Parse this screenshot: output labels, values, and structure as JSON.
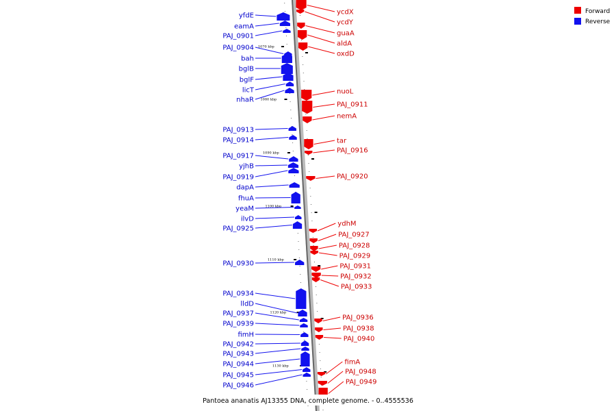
{
  "caption": "Pantoea ananatis AJ13355 DNA, complete genome. - 0..4555536",
  "legend": [
    {
      "label": "Forward",
      "color": "#ee0000"
    },
    {
      "label": "Reverse",
      "color": "#1111ee"
    }
  ],
  "kbp_marks": [
    "1070 kbp",
    "1080 kbp",
    "1090 kbp",
    "1100 kbp",
    "1110 kbp",
    "1120 kbp",
    "1130 kbp"
  ],
  "reverse_genes": [
    "yfdE",
    "eamA",
    "PAJ_0901",
    "PAJ_0904",
    "bah",
    "bglB",
    "bglF",
    "licT",
    "nhaR",
    "PAJ_0913",
    "PAJ_0914",
    "PAJ_0917",
    "yjhB",
    "PAJ_0919",
    "dapA",
    "fhuA",
    "yeaM",
    "ilvD",
    "PAJ_0925",
    "PAJ_0930",
    "PAJ_0934",
    "lldD",
    "PAJ_0937",
    "PAJ_0939",
    "fimH",
    "PAJ_0942",
    "PAJ_0943",
    "PAJ_0944",
    "PAJ_0945",
    "PAJ_0946"
  ],
  "forward_genes": [
    "ycdX",
    "ycdY",
    "guaA",
    "aldA",
    "oxdD",
    "nuoL",
    "PAJ_0911",
    "nemA",
    "tar",
    "PAJ_0916",
    "PAJ_0920",
    "ydhM",
    "PAJ_0927",
    "PAJ_0928",
    "PAJ_0929",
    "PAJ_0931",
    "PAJ_0932",
    "PAJ_0933",
    "PAJ_0936",
    "PAJ_0938",
    "PAJ_0940",
    "fimA",
    "PAJ_0948",
    "PAJ_0949"
  ]
}
